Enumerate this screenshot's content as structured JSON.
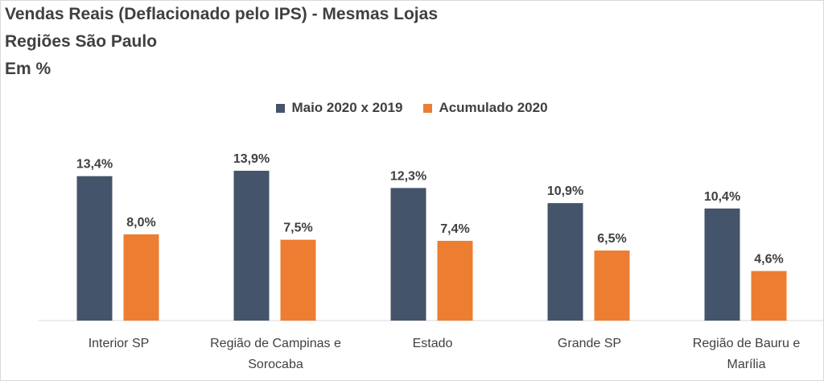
{
  "chart_data": {
    "type": "bar",
    "title": [
      "Vendas Reais (Deflacionado pelo IPS) - Mesmas Lojas",
      "Regiões São Paulo",
      "Em %"
    ],
    "categories": [
      [
        "Interior SP"
      ],
      [
        "Região de Campinas e",
        "Sorocaba"
      ],
      [
        "Estado"
      ],
      [
        "Grande SP"
      ],
      [
        "Região de Bauru e",
        "Marília"
      ]
    ],
    "series": [
      {
        "name": "Maio 2020 x 2019",
        "color": "#44546a",
        "values": [
          13.4,
          13.9,
          12.3,
          10.9,
          10.4
        ],
        "labels": [
          "13,4%",
          "13,9%",
          "12,3%",
          "10,9%",
          "10,4%"
        ]
      },
      {
        "name": "Acumulado 2020",
        "color": "#ed7d31",
        "values": [
          8.0,
          7.5,
          7.4,
          6.5,
          4.6
        ],
        "labels": [
          "8,0%",
          "7,5%",
          "7,4%",
          "6,5%",
          "4,6%"
        ]
      }
    ],
    "xlabel": "",
    "ylabel": "",
    "ylim": [
      0,
      13.9
    ],
    "grid": false,
    "legend_position": "top-center"
  }
}
